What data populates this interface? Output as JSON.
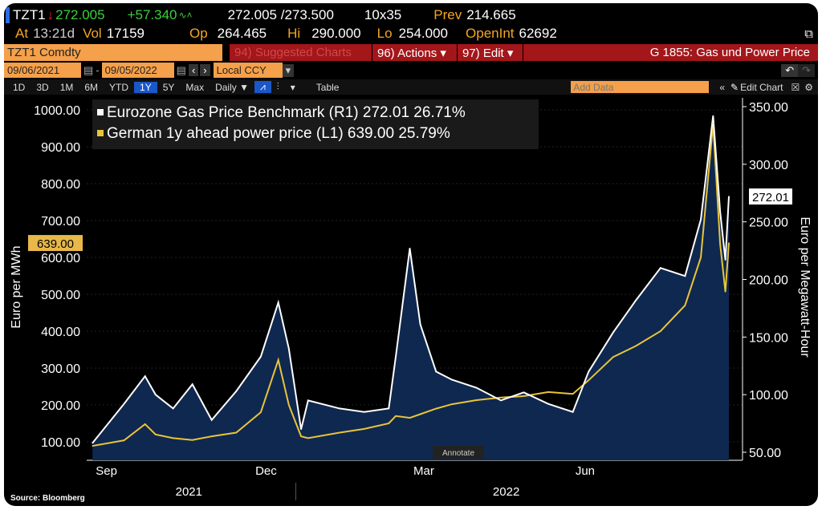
{
  "header": {
    "ticker": "TZT1",
    "last": "272.005",
    "change": "+57.340",
    "bid_ask": "272.005 /273.500",
    "size": "10x35",
    "prev_label": "Prev",
    "prev": "214.665",
    "at_label": "At",
    "time": "13:21d",
    "vol_label": "Vol",
    "vol": "17159",
    "op_label": "Op",
    "op": "264.465",
    "hi_label": "Hi",
    "hi": "290.000",
    "lo_label": "Lo",
    "lo": "254.000",
    "oi_label": "OpenInt",
    "oi": "62692"
  },
  "toolbar": {
    "security": "TZT1 Comdty",
    "suggested": "94) Suggested Charts",
    "actions": "96) Actions ▾",
    "edit": "97) Edit ▾",
    "chart_title": "G 1855: Gas und Power Price",
    "start_date": "09/06/2021",
    "end_date": "09/05/2022",
    "currency": "Local CCY",
    "periods": [
      "1D",
      "3D",
      "1M",
      "6M",
      "YTD",
      "1Y",
      "5Y",
      "Max"
    ],
    "active_period": "1Y",
    "frequency": "Daily ▼",
    "table": "Table",
    "add_data_placeholder": "Add Data",
    "edit_chart": "Edit Chart"
  },
  "chart_data": {
    "type": "line",
    "legend": [
      {
        "label": "Eurozone Gas Price Benchmark (R1) 272.01 26.71%",
        "color": "#ffffff"
      },
      {
        "label": "German 1y ahead power price (L1)  639.00 25.79%",
        "color": "#e8c43a"
      }
    ],
    "ylabel_left": "Euro per MWh",
    "ylabel_right": "Euro per Megawatt-Hour",
    "left_ticks": [
      "100.00",
      "200.00",
      "300.00",
      "400.00",
      "500.00",
      "600.00",
      "700.00",
      "800.00",
      "900.00",
      "1000.00"
    ],
    "ylim_left": [
      100,
      1000
    ],
    "right_ticks": [
      "50.00",
      "100.00",
      "150.00",
      "200.00",
      "250.00",
      "300.00",
      "350.00"
    ],
    "ylim_right": [
      50,
      350
    ],
    "x_months": [
      {
        "label": "Sep",
        "date": "2021-09-15"
      },
      {
        "label": "Dec",
        "date": "2021-12-15"
      },
      {
        "label": "Mar",
        "date": "2022-03-15"
      },
      {
        "label": "Jun",
        "date": "2022-06-15"
      }
    ],
    "x_years": [
      {
        "label": "2021",
        "date": "2021-11-01"
      },
      {
        "label": "2022",
        "date": "2022-05-01"
      }
    ],
    "xlim": [
      "2021-09-06",
      "2022-09-05"
    ],
    "last_left": "639.00",
    "last_right": "272.01",
    "annotate": "Annotate",
    "dates": [
      "2021-09-07",
      "2021-09-25",
      "2021-10-07",
      "2021-10-13",
      "2021-10-23",
      "2021-11-03",
      "2021-11-14",
      "2021-11-28",
      "2021-12-12",
      "2021-12-22",
      "2021-12-28",
      "2022-01-04",
      "2022-01-08",
      "2022-01-26",
      "2022-02-09",
      "2022-02-23",
      "2022-02-27",
      "2022-03-07",
      "2022-03-13",
      "2022-03-22",
      "2022-03-31",
      "2022-04-14",
      "2022-04-28",
      "2022-05-11",
      "2022-05-25",
      "2022-06-08",
      "2022-06-17",
      "2022-07-01",
      "2022-07-14",
      "2022-07-28",
      "2022-08-11",
      "2022-08-20",
      "2022-08-27",
      "2022-08-31",
      "2022-09-03",
      "2022-09-05"
    ],
    "series": [
      {
        "name": "Eurozone Gas Price Benchmark (R1)",
        "axis": "right",
        "values": [
          58,
          92,
          116,
          100,
          88,
          109,
          78,
          103,
          133,
          180,
          140,
          70,
          95,
          88,
          85,
          88,
          133,
          227,
          161,
          120,
          113,
          106,
          95,
          102,
          92,
          85,
          120,
          154,
          182,
          210,
          203,
          252,
          342,
          259,
          217,
          272.01
        ]
      },
      {
        "name": "German 1y ahead power price (L1)",
        "axis": "left",
        "values": [
          89,
          104,
          148,
          120,
          110,
          105,
          115,
          125,
          180,
          322,
          200,
          115,
          110,
          125,
          135,
          150,
          170,
          165,
          175,
          190,
          202,
          213,
          220,
          224,
          235,
          230,
          267,
          330,
          360,
          400,
          470,
          600,
          963,
          637,
          507,
          639
        ]
      }
    ]
  },
  "footer": {
    "source": "Source: Bloomberg"
  }
}
